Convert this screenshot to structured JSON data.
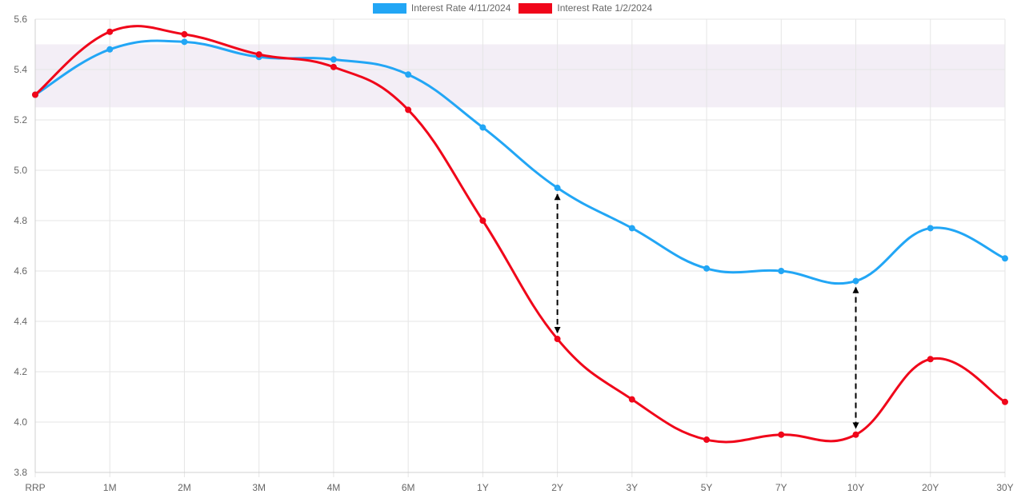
{
  "legend": {
    "series_1": "Interest Rate 4/11/2024",
    "series_2": "Interest Rate 1/2/2024"
  },
  "colors": {
    "series_1": "#22a6f5",
    "series_2": "#f0061a",
    "band": "#f3eef6",
    "grid": "#e5e5e5",
    "arrow": "#000000"
  },
  "chart_data": {
    "type": "line",
    "categories": [
      "RRP",
      "1M",
      "2M",
      "3M",
      "4M",
      "6M",
      "1Y",
      "2Y",
      "3Y",
      "5Y",
      "7Y",
      "10Y",
      "20Y",
      "30Y"
    ],
    "series": [
      {
        "name": "Interest Rate 4/11/2024",
        "color": "#22a6f5",
        "values": [
          5.3,
          5.48,
          5.51,
          5.45,
          5.44,
          5.38,
          5.17,
          4.93,
          4.77,
          4.61,
          4.6,
          4.56,
          4.77,
          4.65
        ]
      },
      {
        "name": "Interest Rate 1/2/2024",
        "color": "#f0061a",
        "values": [
          5.3,
          5.55,
          5.54,
          5.46,
          5.41,
          5.24,
          4.8,
          4.33,
          4.09,
          3.93,
          3.95,
          3.95,
          4.25,
          4.08
        ]
      }
    ],
    "ylim": [
      3.8,
      5.6
    ],
    "y_ticks": [
      "3.8",
      "4.0",
      "4.2",
      "4.4",
      "4.6",
      "4.8",
      "5.0",
      "5.2",
      "5.4",
      "5.6"
    ],
    "shaded_band": [
      5.25,
      5.5
    ],
    "annotations": [
      {
        "type": "double-arrow",
        "category": "2Y",
        "from": 4.93,
        "to": 4.33
      },
      {
        "type": "double-arrow",
        "category": "10Y",
        "from": 4.56,
        "to": 3.95
      }
    ],
    "grid": true,
    "legend_position": "top-center",
    "xlabel": "",
    "ylabel": ""
  }
}
